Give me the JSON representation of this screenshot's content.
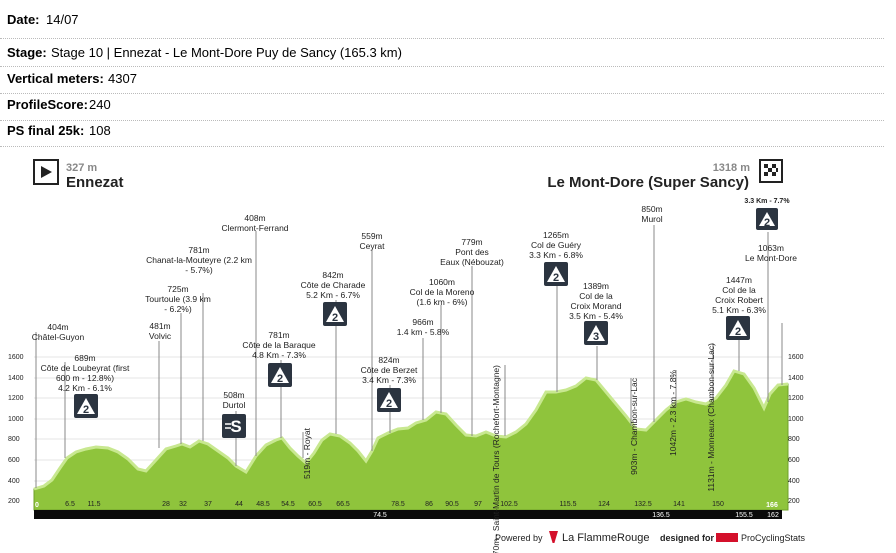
{
  "info": {
    "date_label": "Date:",
    "date": "14/07",
    "stage_label": "Stage:",
    "stage": "Stage 10 | Ennezat - Le Mont-Dore Puy de Sancy (165.3 km)",
    "vertical_label": "Vertical meters:",
    "vertical": "4307",
    "profile_label": "ProfileScore:",
    "profile": "240",
    "ps25_label": "PS final 25k:",
    "ps25": "108"
  },
  "profile": {
    "start_alt": "327 m",
    "start_name": "Ennezat",
    "finish_alt": "1318 m",
    "finish_name": "Le Mont-Dore (Super Sancy)",
    "y_ticks": [
      "200",
      "400",
      "600",
      "800",
      "1000",
      "1200",
      "1400",
      "1600"
    ],
    "km_ticks": [
      "0",
      "6.5",
      "11.5",
      "28",
      "32",
      "37",
      "44",
      "48.5",
      "54.5",
      "60.5",
      "66.5",
      "74.5",
      "78.5",
      "86",
      "90.5",
      "97",
      "102.5",
      "115.5",
      "124",
      "132.5",
      "136.5",
      "141",
      "150",
      "155.5",
      "162",
      "166"
    ],
    "points": [
      {
        "label": [
          "404m",
          "Châtel-Guyon"
        ]
      },
      {
        "label": [
          "689m",
          "Côte de Loubeyrat (first",
          "600 m - 12.8%)",
          "4.2 Km - 6.1%"
        ],
        "cat": "2"
      },
      {
        "label": [
          "781m",
          "Chanat-la-Mouteyre (2.2 km",
          "- 5.7%)"
        ]
      },
      {
        "label": [
          "725m",
          "Tourtoule (3.9 km",
          "- 6.2%)"
        ]
      },
      {
        "label": [
          "481m",
          "Volvic"
        ]
      },
      {
        "label": [
          "408m",
          "Clermont-Ferrand"
        ]
      },
      {
        "label": [
          "508m",
          "Durtol"
        ],
        "cat": "S"
      },
      {
        "label": [
          "781m",
          "Côte de la Baraque",
          "4.8 Km - 7.3%"
        ],
        "cat": "2"
      },
      {
        "label": [
          "519m - Royat"
        ]
      },
      {
        "label": [
          "842m",
          "Côte de Charade",
          "5.2 Km - 6.7%"
        ],
        "cat": "2"
      },
      {
        "label": [
          "559m",
          "Ceyrat"
        ]
      },
      {
        "label": [
          "824m",
          "Côte de Berzet",
          "3.4 Km - 7.3%"
        ],
        "cat": "2"
      },
      {
        "label": [
          "966m",
          "1.4 km - 5.8%"
        ]
      },
      {
        "label": [
          "1060m",
          "Col de la Moreno",
          "(1.6 km - 6%)"
        ]
      },
      {
        "label": [
          "779m",
          "Pont des",
          "Eaux (Nébouzat)"
        ]
      },
      {
        "label": [
          "870m - Saint-Martin de Tours (Rochefort-Montagne)"
        ]
      },
      {
        "label": [
          "1265m",
          "Col de Guéry",
          "3.3 Km - 6.8%"
        ],
        "cat": "2"
      },
      {
        "label": [
          "1389m",
          "Col de la",
          "Croix Morand",
          "3.5 Km - 5.4%"
        ],
        "cat": "3"
      },
      {
        "label": [
          "903m - Chambon-sur-Lac"
        ]
      },
      {
        "label": [
          "850m",
          "Murol"
        ]
      },
      {
        "label": [
          "1042m - 2.3 km - 7.8%"
        ]
      },
      {
        "label": [
          "1131m - Monneaux (Chambon-sur-Lac)"
        ]
      },
      {
        "label": [
          "1447m",
          "Col de la",
          "Croix Robert",
          "5.1 Km - 6.3%"
        ],
        "cat": "2"
      },
      {
        "label": [
          "3.3 Km - 7.7%"
        ],
        "cat": "2"
      },
      {
        "label": [
          "1063m",
          "Le Mont-Dore"
        ]
      }
    ]
  },
  "footer": {
    "powered": "Powered by",
    "lfr": "La FlammeRouge",
    "designed": "designed for",
    "pcs": "ProCyclingStats"
  },
  "colors": {
    "fill": "#8fc43c",
    "fill_light": "#b5dc6e",
    "badge": "#2b3440",
    "bar": "#0a0a0a"
  }
}
